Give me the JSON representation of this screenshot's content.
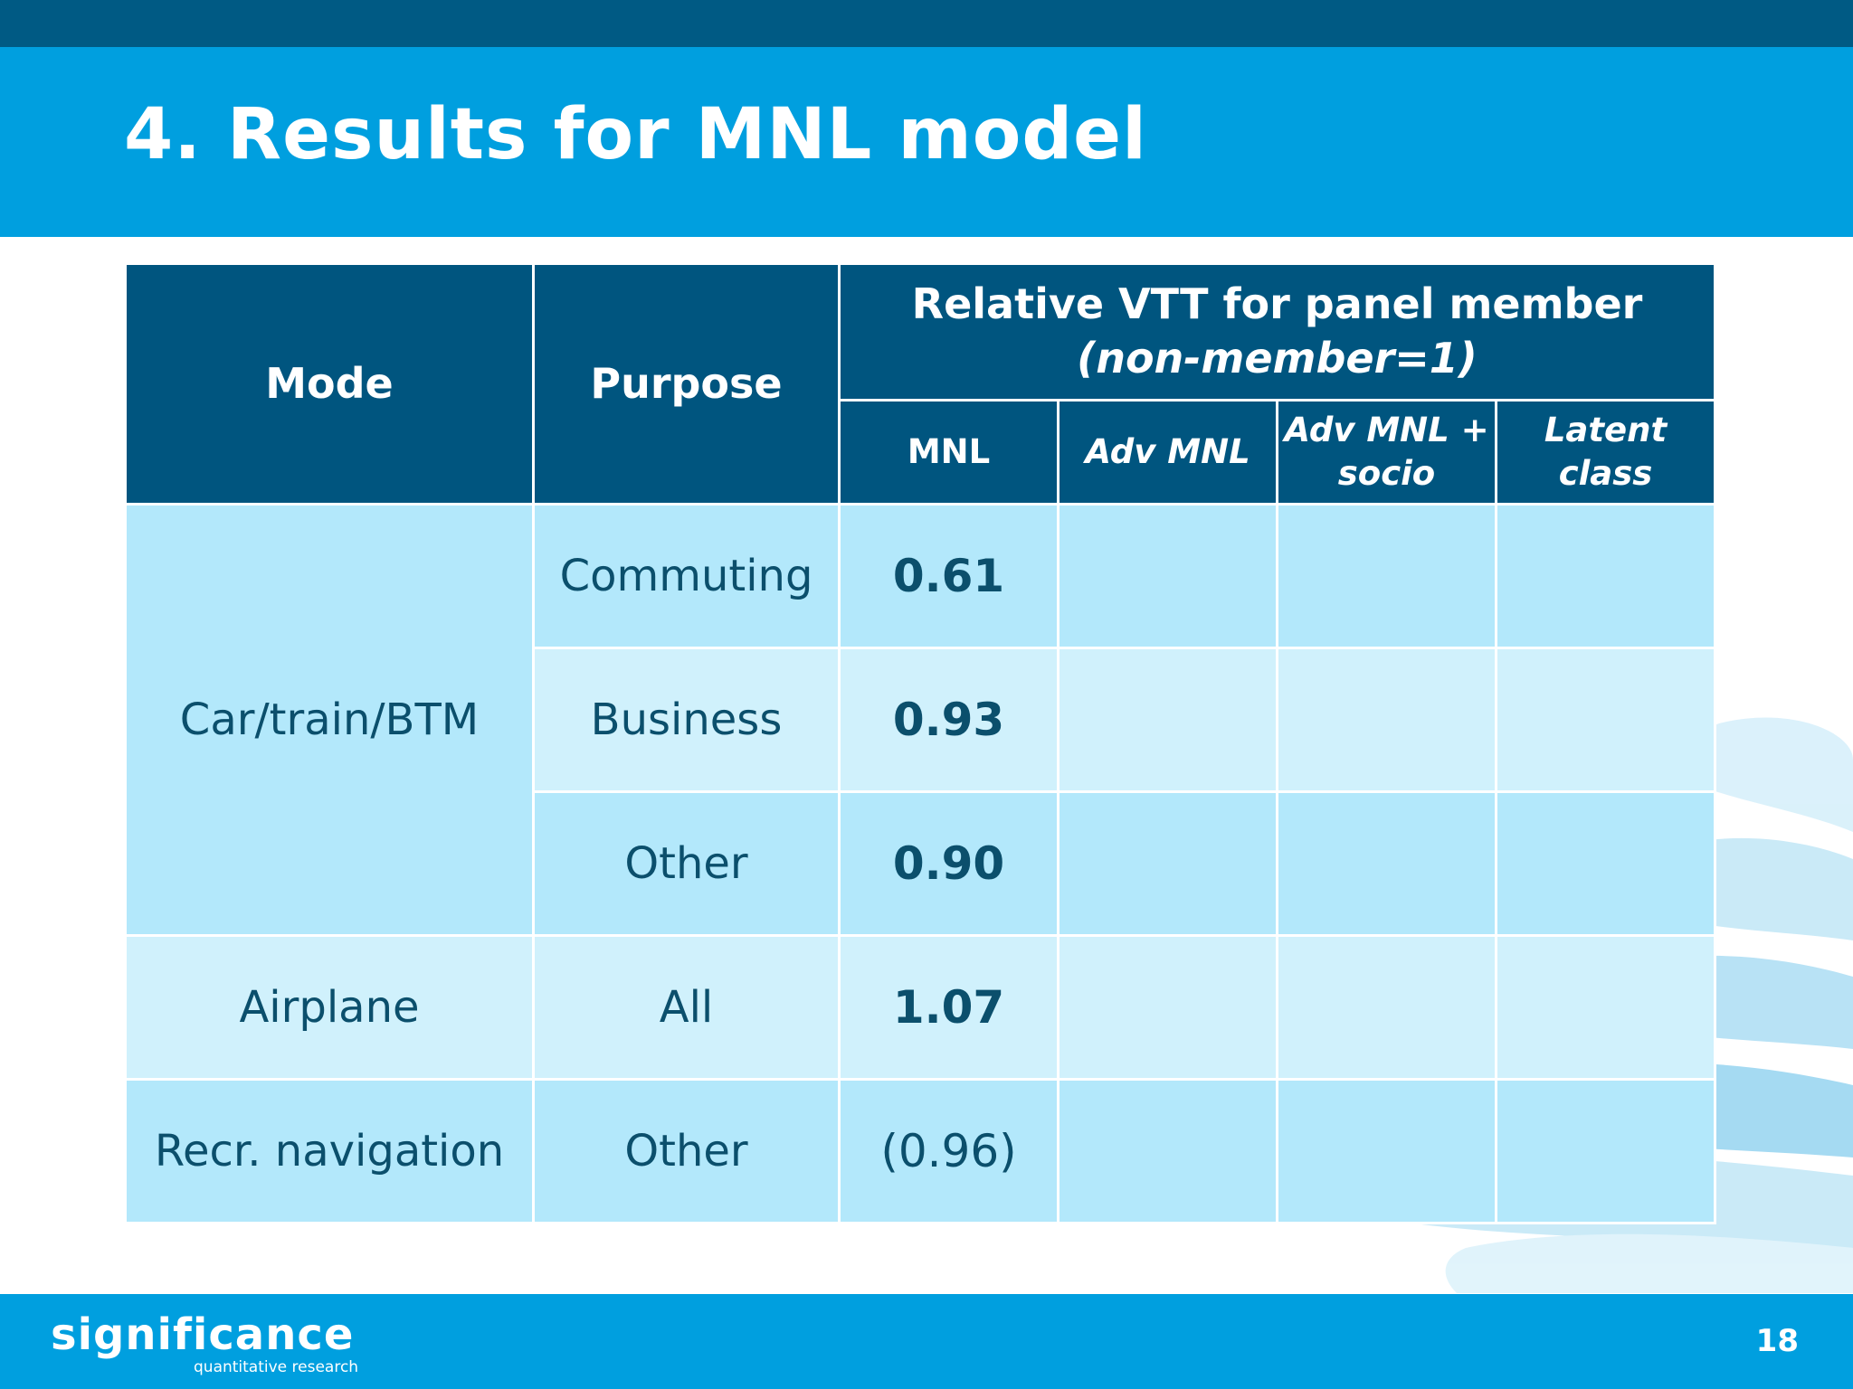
{
  "slide": {
    "title": "4. Results for MNL model",
    "page_number": "18"
  },
  "table": {
    "headers": {
      "mode": "Mode",
      "purpose": "Purpose",
      "group_title": "Relative VTT for panel member",
      "group_subtitle": "(non-member=1)",
      "sub": {
        "mnl": "MNL",
        "adv_mnl": "Adv MNL",
        "adv_mnl_socio_1": "Adv MNL +",
        "adv_mnl_socio_2": "socio",
        "latent_1": "Latent",
        "latent_2": "class"
      }
    },
    "rows": [
      {
        "mode": "Car/train/BTM",
        "purpose": "Commuting",
        "mnl": "0.61"
      },
      {
        "mode": "",
        "purpose": "Business",
        "mnl": "0.93"
      },
      {
        "mode": "",
        "purpose": "Other",
        "mnl": "0.90"
      },
      {
        "mode": "Airplane",
        "purpose": "All",
        "mnl": "1.07"
      },
      {
        "mode": "Recr. navigation",
        "purpose": "Other",
        "mnl": "(0.96)"
      }
    ]
  },
  "footer": {
    "logo_text": "significance",
    "logo_tagline": "quantitative research"
  },
  "colors": {
    "title_band": "#009fdf",
    "top_strip": "#005a84",
    "header_fill": "#00557f",
    "row_fill_dark": "#b3e8fb",
    "row_fill_light": "#d0f1fc",
    "cell_text": "#0b4f6c"
  }
}
